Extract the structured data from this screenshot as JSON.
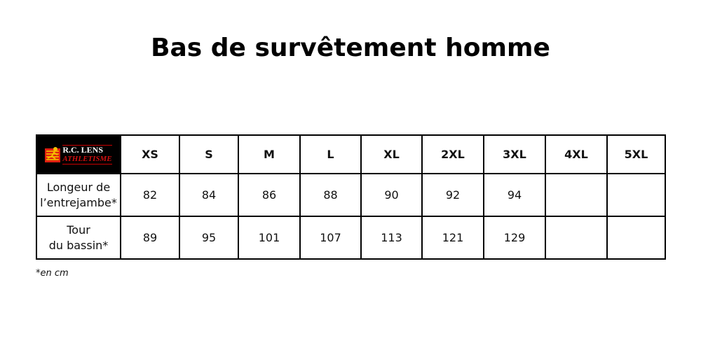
{
  "title": "Bas de survêtement homme",
  "logo": {
    "line1": "R.C. LENS",
    "line2": "ATHLETISME"
  },
  "sizes": [
    "XS",
    "S",
    "M",
    "L",
    "XL",
    "2XL",
    "3XL",
    "4XL",
    "5XL"
  ],
  "rows": [
    {
      "label_line1": "Longeur de",
      "label_line2": "l’entrejambe*",
      "values": [
        "82",
        "84",
        "86",
        "88",
        "90",
        "92",
        "94",
        "",
        ""
      ]
    },
    {
      "label_line1": "Tour",
      "label_line2": "du bassin*",
      "values": [
        "89",
        "95",
        "101",
        "107",
        "113",
        "121",
        "129",
        "",
        ""
      ]
    }
  ],
  "note": "*en cm"
}
